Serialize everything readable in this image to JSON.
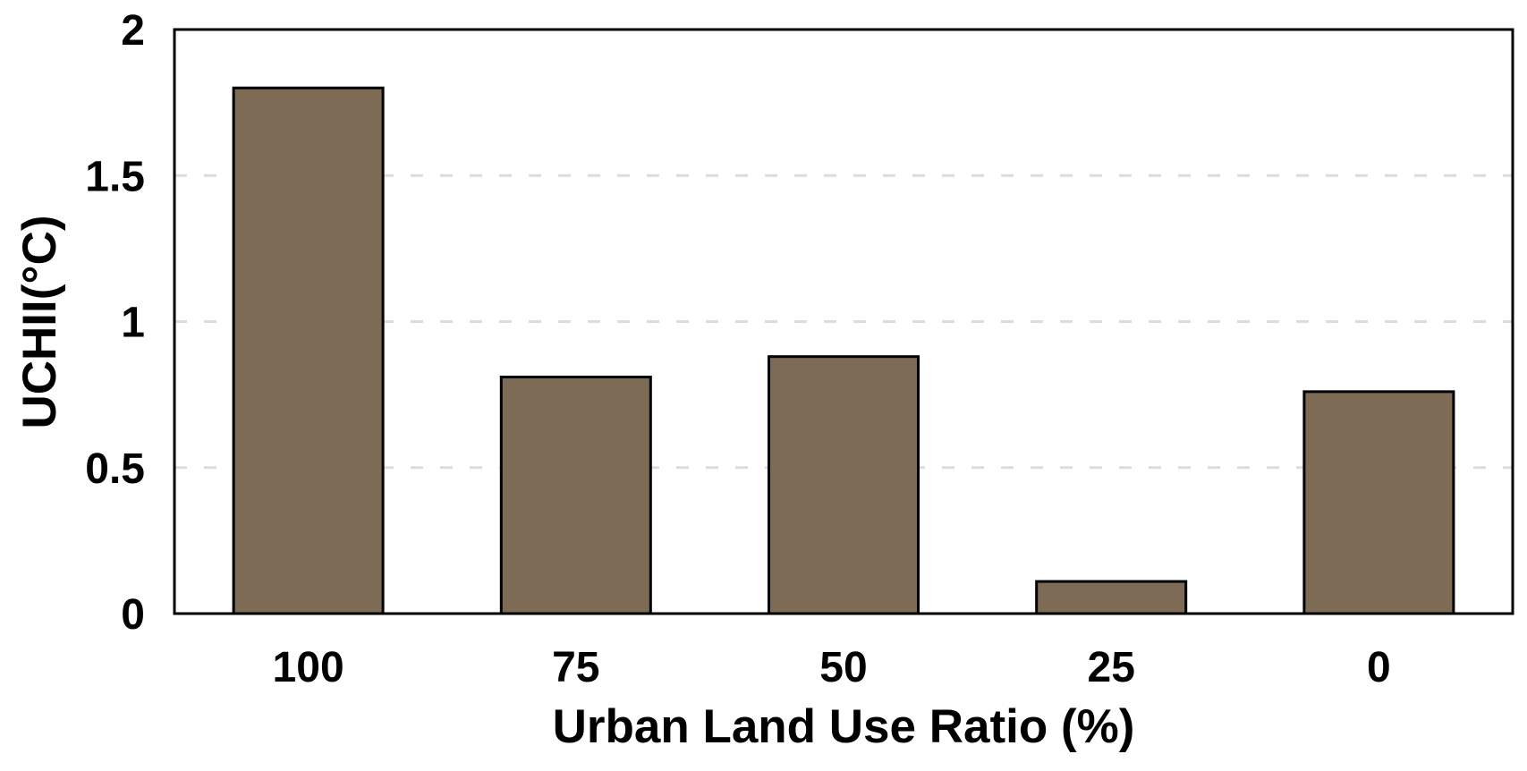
{
  "chart_data": {
    "type": "bar",
    "title": "",
    "xlabel": "Urban Land Use Ratio (%)",
    "ylabel": "UCHII(°C)",
    "categories": [
      "100",
      "75",
      "50",
      "25",
      "0"
    ],
    "values": [
      1.8,
      0.81,
      0.88,
      0.11,
      0.76
    ],
    "series": [
      {
        "name": "UCHII",
        "values": [
          1.8,
          0.81,
          0.88,
          0.11,
          0.76
        ]
      }
    ],
    "ylim": [
      0,
      2
    ],
    "yticks": [
      {
        "value": 0,
        "label": "0"
      },
      {
        "value": 0.5,
        "label": "0.5"
      },
      {
        "value": 1,
        "label": "1"
      },
      {
        "value": 1.5,
        "label": "1.5"
      },
      {
        "value": 2,
        "label": "2"
      }
    ],
    "gridline_values": [
      0.5,
      1,
      1.5
    ],
    "grid": "horizontal-dashed",
    "legend": "none",
    "plot_border": "full-rectangle",
    "colors": {
      "bar_fill": "#7d6b55",
      "bar_border": "#000000",
      "axis": "#000000",
      "gridline": "#dcdcdc",
      "text": "#000000",
      "background": "#ffffff"
    }
  }
}
